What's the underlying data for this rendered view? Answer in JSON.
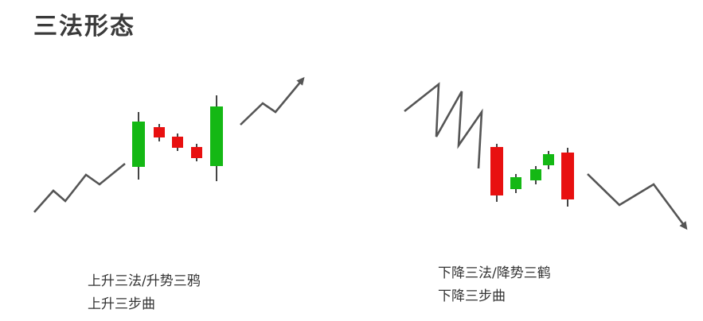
{
  "title": "三法形态",
  "colors": {
    "bullish": "#14b814",
    "bearish": "#e81010",
    "trend_line": "#555555",
    "wick": "#444444"
  },
  "left_pattern": {
    "caption_line1": "上升三法/升势三鸦",
    "caption_line2": "上升三步曲",
    "candles": [
      {
        "color": "bullish"
      },
      {
        "color": "bearish"
      },
      {
        "color": "bearish"
      },
      {
        "color": "bearish"
      },
      {
        "color": "bullish"
      }
    ]
  },
  "right_pattern": {
    "caption_line1": "下降三法/降势三鹤",
    "caption_line2": "下降三步曲",
    "candles": [
      {
        "color": "bearish"
      },
      {
        "color": "bullish"
      },
      {
        "color": "bullish"
      },
      {
        "color": "bullish"
      },
      {
        "color": "bearish"
      }
    ]
  }
}
